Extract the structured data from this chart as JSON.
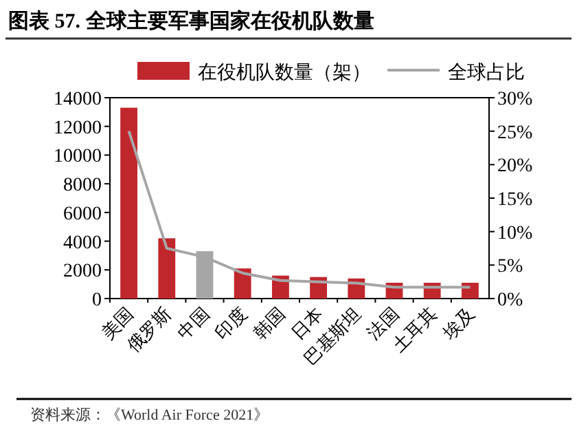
{
  "chart_data": {
    "type": "bar",
    "title": "图表 57. 全球主要军事国家在役机队数量",
    "categories": [
      "美国",
      "俄罗斯",
      "中国",
      "印度",
      "韩国",
      "日本",
      "巴基斯坦",
      "法国",
      "土耳其",
      "埃及"
    ],
    "series": [
      {
        "name": "在役机队数量（架）",
        "color": "#c0272d",
        "colors": [
          "#c0272d",
          "#c0272d",
          "#a6a6a6",
          "#c0272d",
          "#c0272d",
          "#c0272d",
          "#c0272d",
          "#c0272d",
          "#c0272d",
          "#c0272d"
        ],
        "values": [
          13300,
          4200,
          3300,
          2100,
          1600,
          1500,
          1400,
          1100,
          1100,
          1100
        ]
      },
      {
        "name": "全球占比",
        "type": "line",
        "axis": "y2",
        "color": "#a6a6a6",
        "values": [
          25,
          7.5,
          6.2,
          3.8,
          2.7,
          2.5,
          2.3,
          1.7,
          1.7,
          1.7
        ]
      }
    ],
    "ylim": [
      0,
      14000
    ],
    "yticks": [
      0,
      2000,
      4000,
      6000,
      8000,
      10000,
      12000,
      14000
    ],
    "y2lim": [
      0,
      30
    ],
    "y2ticks": [
      {
        "value": 0,
        "label": "0%"
      },
      {
        "value": 5,
        "label": "5%"
      },
      {
        "value": 10,
        "label": "10%"
      },
      {
        "value": 15,
        "label": "15%"
      },
      {
        "value": 20,
        "label": "20%"
      },
      {
        "value": 25,
        "label": "25%"
      },
      {
        "value": 30,
        "label": "30%"
      }
    ],
    "legend": "top",
    "grid": false,
    "marker": "none",
    "annotations": [
      "资料来源：《World Air Force 2021》"
    ]
  }
}
